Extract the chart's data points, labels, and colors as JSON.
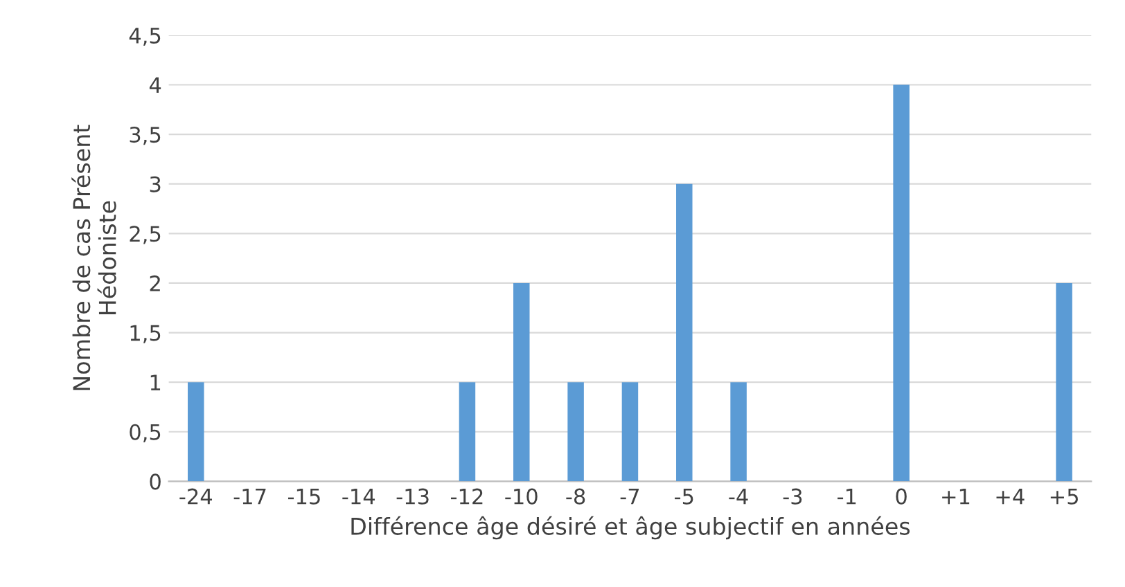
{
  "chart_data": {
    "type": "bar",
    "xlabel": "Différence âge désiré et âge subjectif en années",
    "ylabel": "Nombre de cas Présent\nHédoniste",
    "categories": [
      "-24",
      "-17",
      "-15",
      "-14",
      "-13",
      "-12",
      "-10",
      "-8",
      "-7",
      "-5",
      "-4",
      "-3",
      "-1",
      "0",
      "+1",
      "+4",
      "+5"
    ],
    "values": [
      1,
      0,
      0,
      0,
      0,
      1,
      2,
      1,
      1,
      3,
      1,
      0,
      0,
      4,
      0,
      0,
      2
    ],
    "color": "#5b9bd5",
    "ylim": [
      0,
      4.5
    ],
    "yticks": [
      0,
      {
        "value": 0.5,
        "label": "0,5"
      },
      1,
      {
        "value": 1.5,
        "label": "1,5"
      },
      2,
      {
        "value": 2.5,
        "label": "2,5"
      },
      3,
      {
        "value": 3.5,
        "label": "3,5"
      },
      4,
      {
        "value": 4.5,
        "label": "4,5"
      }
    ],
    "grid": "y",
    "legend": false
  }
}
